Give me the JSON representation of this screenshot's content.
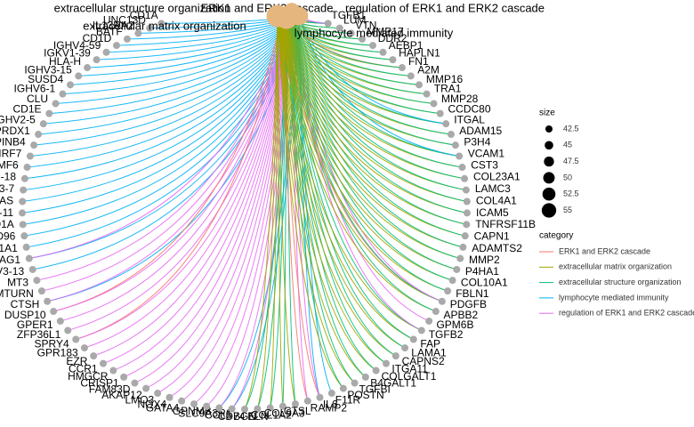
{
  "chart_data": {
    "type": "network",
    "categories": [
      {
        "name": "ERK1 and ERK2 cascade",
        "color": "#F8766D",
        "size": 43
      },
      {
        "name": "extracellular matrix organization",
        "color": "#A3A500",
        "size": 54
      },
      {
        "name": "extracellular structure organization",
        "color": "#00BF7D",
        "size": 54
      },
      {
        "name": "lymphocyte mediated immunity",
        "color": "#00B0F6",
        "size": 50
      },
      {
        "name": "regulation of ERK1 and ERK2 cascade",
        "color": "#E76BF3",
        "size": 47
      }
    ],
    "genes": [
      {
        "label": "CD1A",
        "links": [
          3
        ]
      },
      {
        "label": "UNC13D",
        "links": [
          3
        ]
      },
      {
        "label": "IL13RA2",
        "links": [
          3
        ]
      },
      {
        "label": "BATF",
        "links": [
          3
        ]
      },
      {
        "label": "CD1D",
        "links": [
          3
        ]
      },
      {
        "label": "IGHV4-59",
        "links": [
          3
        ]
      },
      {
        "label": "IGKV1-39",
        "links": [
          3
        ]
      },
      {
        "label": "HLA-H",
        "links": [
          3
        ]
      },
      {
        "label": "IGHV3-15",
        "links": [
          3
        ]
      },
      {
        "label": "SUSD4",
        "links": [
          3
        ]
      },
      {
        "label": "IGHV6-1",
        "links": [
          3
        ]
      },
      {
        "label": "CLU",
        "links": [
          3
        ]
      },
      {
        "label": "CD1E",
        "links": [
          3
        ]
      },
      {
        "label": "IGHV2-5",
        "links": [
          3
        ]
      },
      {
        "label": "PRDX1",
        "links": [
          3
        ]
      },
      {
        "label": "SERPINB4",
        "links": [
          3
        ]
      },
      {
        "label": "IRF7",
        "links": [
          3
        ]
      },
      {
        "label": "SLAMF6",
        "links": [
          3
        ]
      },
      {
        "label": "IGHV1-18",
        "links": [
          3
        ]
      },
      {
        "label": "IGHV3-7",
        "links": [
          3
        ]
      },
      {
        "label": "WAS",
        "links": [
          3
        ]
      },
      {
        "label": "IGHV3-11",
        "links": [
          3
        ]
      },
      {
        "label": "SH2D1A",
        "links": [
          3
        ]
      },
      {
        "label": "CD96",
        "links": [
          3
        ]
      },
      {
        "label": "SLC11A1",
        "links": [
          3
        ]
      },
      {
        "label": "JAG1",
        "links": [
          3,
          4
        ]
      },
      {
        "label": "IGHV3-13",
        "links": [
          3
        ]
      },
      {
        "label": "MT3",
        "links": [
          4
        ]
      },
      {
        "label": "MTURN",
        "links": [
          4
        ]
      },
      {
        "label": "CTSH",
        "links": [
          3,
          4
        ]
      },
      {
        "label": "DUSP10",
        "links": [
          0,
          4
        ]
      },
      {
        "label": "GPER1",
        "links": [
          4
        ]
      },
      {
        "label": "ZFP36L1",
        "links": [
          4
        ]
      },
      {
        "label": "SPRY4",
        "links": [
          0,
          4
        ]
      },
      {
        "label": "GPR183",
        "links": [
          4
        ]
      },
      {
        "label": "EZR",
        "links": [
          4
        ]
      },
      {
        "label": "CCR1",
        "links": [
          4
        ]
      },
      {
        "label": "HMGCR",
        "links": [
          4
        ]
      },
      {
        "label": "CRISP1",
        "links": [
          4
        ]
      },
      {
        "label": "FAM83D",
        "links": [
          4
        ]
      },
      {
        "label": "AKAP12",
        "links": [
          4
        ]
      },
      {
        "label": "LMO3",
        "links": [
          4
        ]
      },
      {
        "label": "NOX4",
        "links": [
          4
        ]
      },
      {
        "label": "GATA4",
        "links": [
          4
        ]
      },
      {
        "label": "GPNMB",
        "links": [
          4
        ]
      },
      {
        "label": "SLC9A3R1",
        "links": [
          4
        ]
      },
      {
        "label": "CCL5",
        "links": [
          3,
          4
        ]
      },
      {
        "label": "CD74",
        "links": [
          3,
          4
        ]
      },
      {
        "label": "BGN",
        "links": [
          1,
          2
        ]
      },
      {
        "label": "ELN",
        "links": [
          1,
          2
        ]
      },
      {
        "label": "COL1A2",
        "links": [
          1,
          2
        ]
      },
      {
        "label": "COL9A3",
        "links": [
          1,
          2
        ]
      },
      {
        "label": "CTSL",
        "links": [
          1,
          2
        ]
      },
      {
        "label": "RAMP2",
        "links": [
          0,
          4
        ]
      },
      {
        "label": "IL6",
        "links": [
          0,
          3,
          4
        ]
      },
      {
        "label": "F11R",
        "links": [
          3
        ]
      },
      {
        "label": "POSTN",
        "links": [
          1,
          2
        ]
      },
      {
        "label": "TGFBI",
        "links": [
          1,
          2
        ]
      },
      {
        "label": "B4GALT1",
        "links": [
          1,
          2
        ]
      },
      {
        "label": "COLGALT1",
        "links": [
          1,
          2
        ]
      },
      {
        "label": "ITGA11",
        "links": [
          1,
          2
        ]
      },
      {
        "label": "CAPNS2",
        "links": [
          1,
          2
        ]
      },
      {
        "label": "LAMA1",
        "links": [
          1,
          2
        ]
      },
      {
        "label": "FAP",
        "links": [
          1,
          2
        ]
      },
      {
        "label": "TGFB2",
        "links": [
          1,
          2,
          4
        ]
      },
      {
        "label": "GPM6B",
        "links": [
          4
        ]
      },
      {
        "label": "APBB2",
        "links": [
          1,
          2
        ]
      },
      {
        "label": "PDGFB",
        "links": [
          0,
          1,
          2,
          4
        ]
      },
      {
        "label": "FBLN1",
        "links": [
          1,
          2
        ]
      },
      {
        "label": "COL10A1",
        "links": [
          1,
          2
        ]
      },
      {
        "label": "P4HA1",
        "links": [
          1,
          2
        ]
      },
      {
        "label": "MMP2",
        "links": [
          1,
          2
        ]
      },
      {
        "label": "ADAMTS2",
        "links": [
          1,
          2
        ]
      },
      {
        "label": "CAPN1",
        "links": [
          1,
          2
        ]
      },
      {
        "label": "TNFRSF11B",
        "links": [
          1,
          2
        ]
      },
      {
        "label": "ICAM5",
        "links": [
          1,
          2
        ]
      },
      {
        "label": "COL4A1",
        "links": [
          1,
          2
        ]
      },
      {
        "label": "LAMC3",
        "links": [
          1,
          2
        ]
      },
      {
        "label": "COL23A1",
        "links": [
          1,
          2
        ]
      },
      {
        "label": "CST3",
        "links": [
          1,
          2
        ]
      },
      {
        "label": "VCAM1",
        "links": [
          1,
          2,
          3
        ]
      },
      {
        "label": "P3H4",
        "links": [
          1,
          2
        ]
      },
      {
        "label": "ADAM15",
        "links": [
          1,
          2
        ]
      },
      {
        "label": "ITGAL",
        "links": [
          1,
          2,
          3
        ]
      },
      {
        "label": "CCDC80",
        "links": [
          1,
          2
        ]
      },
      {
        "label": "MMP28",
        "links": [
          1,
          2
        ]
      },
      {
        "label": "TRA1",
        "links": [
          1,
          2
        ]
      },
      {
        "label": "MMP16",
        "links": [
          1,
          2
        ]
      },
      {
        "label": "A2M",
        "links": [
          1,
          2
        ]
      },
      {
        "label": "FN1",
        "links": [
          0,
          1,
          2
        ]
      },
      {
        "label": "HAPLN1",
        "links": [
          1,
          2
        ]
      },
      {
        "label": "AEBP1",
        "links": [
          1,
          2
        ]
      },
      {
        "label": "DDR2",
        "links": [
          1,
          2
        ]
      },
      {
        "label": "MMP17",
        "links": [
          1,
          2
        ]
      },
      {
        "label": "VTN",
        "links": [
          1,
          2
        ]
      },
      {
        "label": "LUM",
        "links": [
          1,
          2
        ]
      },
      {
        "label": "TGFB1",
        "links": [
          0,
          1,
          2,
          3,
          4
        ]
      }
    ],
    "size_legend": {
      "title": "size",
      "values": [
        42.5,
        45,
        47.5,
        50,
        52.5,
        55
      ]
    },
    "category_legend_title": "category"
  }
}
